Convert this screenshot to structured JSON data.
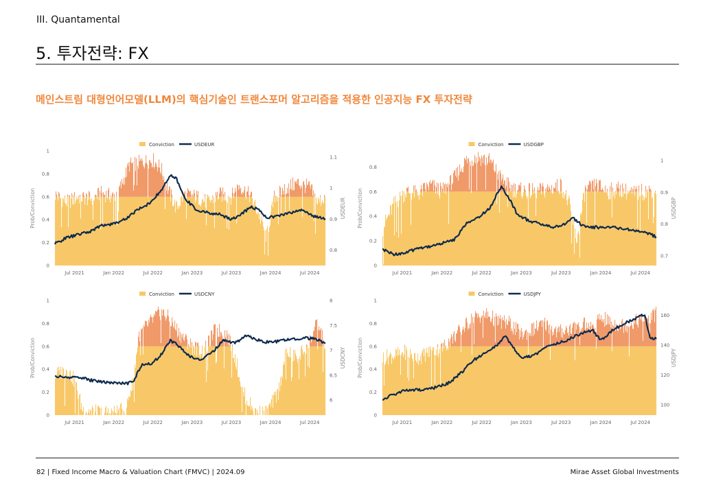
{
  "header": {
    "section": "III. Quantamental",
    "title": "5. 투자전략: FX",
    "subtitle": "메인스트림 대형언어모델(LLM)의 핵심기술인 트랜스포머 알고리즘을 적용한 인공지능 FX 투자전략"
  },
  "footer": {
    "left": "82 | Fixed Income Macro & Valuation Chart (FMVC) | 2024.09",
    "right": "Mirae Asset Global Investments"
  },
  "colors": {
    "conviction_fill": "#f8c868",
    "conviction_top": "#f09a6a",
    "fx_line": "#0d2b4e"
  },
  "chart_data": [
    {
      "type": "area",
      "legend": [
        "Conviction",
        "USDEUR"
      ],
      "ylabel": "Prob/Conviction",
      "y2label": "USDEUR",
      "ylim": [
        0,
        1
      ],
      "y_ticks": [
        0,
        0.2,
        0.4,
        0.6,
        0.8,
        1
      ],
      "y2lim": [
        0.75,
        1.12
      ],
      "y2_ticks": [
        0.8,
        0.9,
        1,
        1.1
      ],
      "x_ticks": [
        "Jul 2021",
        "Jan 2022",
        "Jul 2022",
        "Jan 2023",
        "Jul 2023",
        "Jan 2024",
        "Jul 2024"
      ],
      "xlim": [
        2021.25,
        2024.7
      ],
      "conviction": [
        [
          2021.25,
          0.62
        ],
        [
          2021.4,
          0.55
        ],
        [
          2021.55,
          0.6
        ],
        [
          2021.7,
          0.58
        ],
        [
          2021.85,
          0.63
        ],
        [
          2022.0,
          0.6
        ],
        [
          2022.1,
          0.7
        ],
        [
          2022.2,
          0.88
        ],
        [
          2022.35,
          0.9
        ],
        [
          2022.5,
          0.92
        ],
        [
          2022.6,
          0.85
        ],
        [
          2022.7,
          0.65
        ],
        [
          2022.8,
          0.5
        ],
        [
          2022.9,
          0.62
        ],
        [
          2023.05,
          0.6
        ],
        [
          2023.2,
          0.55
        ],
        [
          2023.35,
          0.62
        ],
        [
          2023.5,
          0.6
        ],
        [
          2023.6,
          0.7
        ],
        [
          2023.75,
          0.6
        ],
        [
          2023.85,
          0.45
        ],
        [
          2023.95,
          0.25
        ],
        [
          2024.05,
          0.6
        ],
        [
          2024.2,
          0.68
        ],
        [
          2024.35,
          0.72
        ],
        [
          2024.5,
          0.68
        ],
        [
          2024.6,
          0.55
        ],
        [
          2024.7,
          0.6
        ]
      ],
      "fx": [
        [
          2021.25,
          0.82
        ],
        [
          2021.4,
          0.84
        ],
        [
          2021.55,
          0.85
        ],
        [
          2021.7,
          0.86
        ],
        [
          2021.85,
          0.88
        ],
        [
          2022.0,
          0.885
        ],
        [
          2022.15,
          0.9
        ],
        [
          2022.3,
          0.93
        ],
        [
          2022.45,
          0.95
        ],
        [
          2022.6,
          0.99
        ],
        [
          2022.72,
          1.04
        ],
        [
          2022.8,
          1.03
        ],
        [
          2022.9,
          0.97
        ],
        [
          2023.05,
          0.93
        ],
        [
          2023.2,
          0.92
        ],
        [
          2023.35,
          0.915
        ],
        [
          2023.5,
          0.9
        ],
        [
          2023.6,
          0.91
        ],
        [
          2023.75,
          0.94
        ],
        [
          2023.85,
          0.93
        ],
        [
          2023.95,
          0.905
        ],
        [
          2024.1,
          0.91
        ],
        [
          2024.25,
          0.92
        ],
        [
          2024.4,
          0.93
        ],
        [
          2024.55,
          0.91
        ],
        [
          2024.7,
          0.9
        ]
      ]
    },
    {
      "type": "area",
      "legend": [
        "Conviction",
        "USDGBP"
      ],
      "ylabel": "Prob/Conviction",
      "y2label": "USDGBP",
      "ylim": [
        0,
        0.93
      ],
      "y_ticks": [
        0,
        0.2,
        0.4,
        0.6,
        0.8
      ],
      "y2lim": [
        0.67,
        1.03
      ],
      "y2_ticks": [
        0.7,
        0.8,
        0.9,
        1
      ],
      "x_ticks": [
        "Jul 2021",
        "Jan 2022",
        "Jul 2022",
        "Jan 2023",
        "Jul 2023",
        "Jan 2024",
        "Jul 2024"
      ],
      "xlim": [
        2021.25,
        2024.7
      ],
      "conviction": [
        [
          2021.25,
          0.3
        ],
        [
          2021.4,
          0.5
        ],
        [
          2021.55,
          0.6
        ],
        [
          2021.7,
          0.58
        ],
        [
          2021.85,
          0.65
        ],
        [
          2022.0,
          0.6
        ],
        [
          2022.15,
          0.7
        ],
        [
          2022.3,
          0.85
        ],
        [
          2022.45,
          0.88
        ],
        [
          2022.6,
          0.85
        ],
        [
          2022.75,
          0.7
        ],
        [
          2022.9,
          0.62
        ],
        [
          2023.05,
          0.6
        ],
        [
          2023.2,
          0.6
        ],
        [
          2023.35,
          0.62
        ],
        [
          2023.5,
          0.65
        ],
        [
          2023.6,
          0.5
        ],
        [
          2023.7,
          0.2
        ],
        [
          2023.8,
          0.6
        ],
        [
          2023.95,
          0.65
        ],
        [
          2024.1,
          0.6
        ],
        [
          2024.25,
          0.62
        ],
        [
          2024.4,
          0.58
        ],
        [
          2024.55,
          0.6
        ],
        [
          2024.7,
          0.62
        ]
      ],
      "fx": [
        [
          2021.25,
          0.72
        ],
        [
          2021.4,
          0.705
        ],
        [
          2021.55,
          0.71
        ],
        [
          2021.7,
          0.725
        ],
        [
          2021.85,
          0.73
        ],
        [
          2022.0,
          0.74
        ],
        [
          2022.15,
          0.75
        ],
        [
          2022.3,
          0.8
        ],
        [
          2022.45,
          0.82
        ],
        [
          2022.6,
          0.85
        ],
        [
          2022.75,
          0.92
        ],
        [
          2022.85,
          0.88
        ],
        [
          2022.95,
          0.83
        ],
        [
          2023.1,
          0.81
        ],
        [
          2023.25,
          0.8
        ],
        [
          2023.4,
          0.79
        ],
        [
          2023.55,
          0.8
        ],
        [
          2023.65,
          0.82
        ],
        [
          2023.75,
          0.8
        ],
        [
          2023.85,
          0.79
        ],
        [
          2024.0,
          0.79
        ],
        [
          2024.15,
          0.79
        ],
        [
          2024.3,
          0.785
        ],
        [
          2024.45,
          0.78
        ],
        [
          2024.6,
          0.77
        ],
        [
          2024.7,
          0.76
        ]
      ]
    },
    {
      "type": "area",
      "legend": [
        "Conviction",
        "USDCNY"
      ],
      "ylabel": "Prob/Conviction",
      "y2label": "USDCNY",
      "ylim": [
        0,
        1
      ],
      "y_ticks": [
        0,
        0.2,
        0.4,
        0.6,
        0.8,
        1
      ],
      "y2lim": [
        5.7,
        8.0
      ],
      "y2_ticks": [
        6,
        6.5,
        7,
        7.5,
        8
      ],
      "x_ticks": [
        "Jul 2021",
        "Jan 2022",
        "Jul 2022",
        "Jan 2023",
        "Jul 2023",
        "Jan 2024",
        "Jul 2024"
      ],
      "xlim": [
        2021.25,
        2024.7
      ],
      "conviction": [
        [
          2021.25,
          0.35
        ],
        [
          2021.4,
          0.4
        ],
        [
          2021.5,
          0.3
        ],
        [
          2021.6,
          0.05
        ],
        [
          2021.8,
          0.02
        ],
        [
          2022.0,
          0.02
        ],
        [
          2022.15,
          0.05
        ],
        [
          2022.25,
          0.3
        ],
        [
          2022.32,
          0.7
        ],
        [
          2022.45,
          0.8
        ],
        [
          2022.6,
          0.9
        ],
        [
          2022.7,
          0.85
        ],
        [
          2022.85,
          0.7
        ],
        [
          2023.0,
          0.6
        ],
        [
          2023.15,
          0.55
        ],
        [
          2023.3,
          0.75
        ],
        [
          2023.45,
          0.7
        ],
        [
          2023.55,
          0.5
        ],
        [
          2023.65,
          0.2
        ],
        [
          2023.8,
          0.02
        ],
        [
          2023.95,
          0.02
        ],
        [
          2024.1,
          0.2
        ],
        [
          2024.2,
          0.55
        ],
        [
          2024.35,
          0.5
        ],
        [
          2024.5,
          0.65
        ],
        [
          2024.6,
          0.8
        ],
        [
          2024.7,
          0.6
        ]
      ],
      "fx": [
        [
          2021.25,
          6.48
        ],
        [
          2021.4,
          6.45
        ],
        [
          2021.55,
          6.47
        ],
        [
          2021.7,
          6.4
        ],
        [
          2021.85,
          6.37
        ],
        [
          2022.0,
          6.35
        ],
        [
          2022.15,
          6.33
        ],
        [
          2022.25,
          6.36
        ],
        [
          2022.35,
          6.7
        ],
        [
          2022.5,
          6.75
        ],
        [
          2022.6,
          6.9
        ],
        [
          2022.72,
          7.2
        ],
        [
          2022.82,
          7.1
        ],
        [
          2022.95,
          6.9
        ],
        [
          2023.1,
          6.8
        ],
        [
          2023.25,
          6.95
        ],
        [
          2023.4,
          7.2
        ],
        [
          2023.55,
          7.15
        ],
        [
          2023.7,
          7.3
        ],
        [
          2023.85,
          7.2
        ],
        [
          2024.0,
          7.15
        ],
        [
          2024.15,
          7.2
        ],
        [
          2024.3,
          7.22
        ],
        [
          2024.45,
          7.25
        ],
        [
          2024.6,
          7.22
        ],
        [
          2024.7,
          7.12
        ]
      ]
    },
    {
      "type": "area",
      "legend": [
        "Conviction",
        "USDJPY"
      ],
      "ylabel": "Prob/Conviction",
      "y2label": "USDJPY",
      "ylim": [
        0,
        1
      ],
      "y_ticks": [
        0,
        0.2,
        0.4,
        0.6,
        0.8,
        1
      ],
      "y2lim": [
        93,
        170
      ],
      "y2_ticks": [
        100,
        120,
        140,
        160
      ],
      "x_ticks": [
        "Jul 2021",
        "Jan 2022",
        "Jul 2022",
        "Jan 2023",
        "Jul 2023",
        "Jan 2024",
        "Jul 2024"
      ],
      "xlim": [
        2021.25,
        2024.7
      ],
      "conviction": [
        [
          2021.25,
          0.5
        ],
        [
          2021.4,
          0.52
        ],
        [
          2021.55,
          0.55
        ],
        [
          2021.7,
          0.5
        ],
        [
          2021.85,
          0.55
        ],
        [
          2022.0,
          0.58
        ],
        [
          2022.1,
          0.65
        ],
        [
          2022.25,
          0.75
        ],
        [
          2022.4,
          0.85
        ],
        [
          2022.55,
          0.88
        ],
        [
          2022.7,
          0.82
        ],
        [
          2022.85,
          0.8
        ],
        [
          2023.0,
          0.7
        ],
        [
          2023.15,
          0.75
        ],
        [
          2023.3,
          0.8
        ],
        [
          2023.45,
          0.72
        ],
        [
          2023.6,
          0.75
        ],
        [
          2023.75,
          0.8
        ],
        [
          2023.9,
          0.75
        ],
        [
          2024.0,
          0.85
        ],
        [
          2024.15,
          0.8
        ],
        [
          2024.3,
          0.78
        ],
        [
          2024.45,
          0.82
        ],
        [
          2024.6,
          0.85
        ],
        [
          2024.7,
          0.88
        ]
      ],
      "fx": [
        [
          2021.25,
          103
        ],
        [
          2021.35,
          106
        ],
        [
          2021.5,
          109
        ],
        [
          2021.65,
          110
        ],
        [
          2021.8,
          110
        ],
        [
          2021.95,
          112
        ],
        [
          2022.1,
          115
        ],
        [
          2022.25,
          122
        ],
        [
          2022.4,
          130
        ],
        [
          2022.55,
          135
        ],
        [
          2022.7,
          140
        ],
        [
          2022.8,
          146
        ],
        [
          2022.9,
          138
        ],
        [
          2023.0,
          131
        ],
        [
          2023.15,
          133
        ],
        [
          2023.3,
          138
        ],
        [
          2023.45,
          141
        ],
        [
          2023.6,
          144
        ],
        [
          2023.75,
          148
        ],
        [
          2023.9,
          150
        ],
        [
          2024.0,
          143
        ],
        [
          2024.15,
          150
        ],
        [
          2024.3,
          155
        ],
        [
          2024.45,
          158
        ],
        [
          2024.55,
          161
        ],
        [
          2024.62,
          145
        ],
        [
          2024.7,
          144
        ]
      ]
    }
  ]
}
